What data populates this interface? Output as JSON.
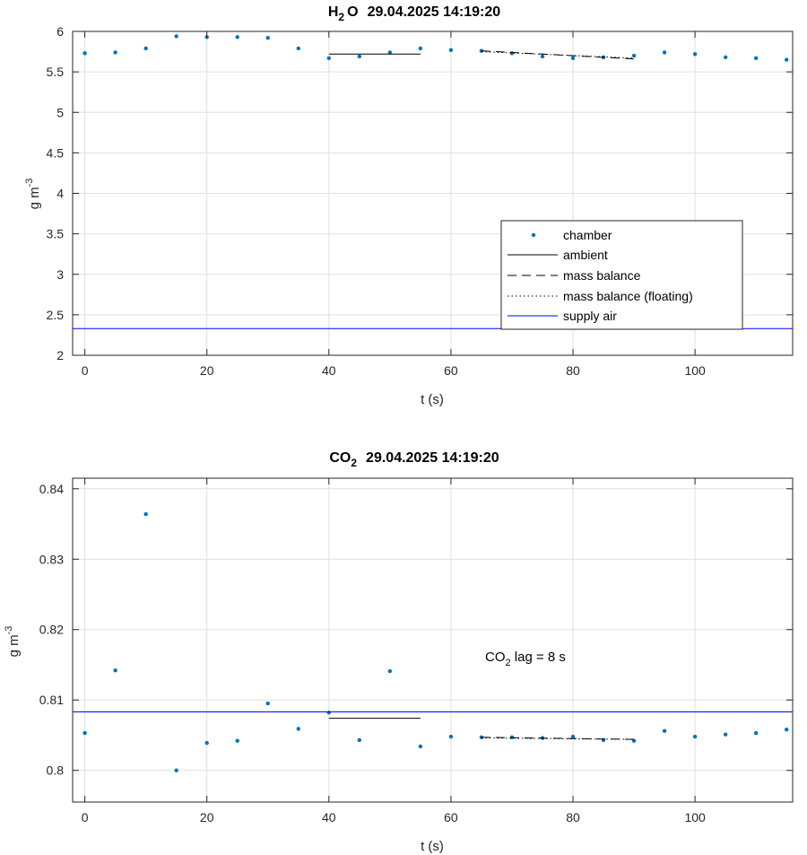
{
  "colors": {
    "chamber": "#0072BD",
    "supply_air": "#0000FF",
    "line": "#000000",
    "grid": "#dfdfdf"
  },
  "chart_data": [
    {
      "type": "scatter",
      "title": {
        "species": "H",
        "species_sub": "2",
        "species_tail": "O",
        "timestamp": "29.04.2025 14:19:20"
      },
      "xlabel": "t (s)",
      "ylabel": {
        "base": "g m",
        "sup": "-3"
      },
      "xlim": [
        -2,
        116
      ],
      "ylim": [
        2,
        6
      ],
      "xticks": [
        0,
        20,
        40,
        60,
        80,
        100
      ],
      "xtick_labels": [
        "0",
        "20",
        "40",
        "60",
        "80",
        "100"
      ],
      "yticks": [
        2,
        2.5,
        3,
        3.5,
        4,
        4.5,
        5,
        5.5,
        6
      ],
      "ytick_labels": [
        "2",
        "2.5",
        "3",
        "3.5",
        "4",
        "4.5",
        "5",
        "5.5",
        "6"
      ],
      "grid": true,
      "legend": {
        "position": "lower-right",
        "entries": [
          {
            "label": "chamber",
            "style": "dot"
          },
          {
            "label": "ambient",
            "style": "solid"
          },
          {
            "label": "mass balance",
            "style": "dashed"
          },
          {
            "label": "mass balance (floating)",
            "style": "dotted"
          },
          {
            "label": "supply air",
            "style": "solid-blue"
          }
        ]
      },
      "series": [
        {
          "name": "chamber",
          "style": "dot",
          "x": [
            0,
            5,
            10,
            15,
            20,
            25,
            30,
            35,
            40,
            45,
            50,
            55,
            60,
            65,
            70,
            75,
            80,
            85,
            90,
            95,
            100,
            105,
            110,
            115
          ],
          "y": [
            5.73,
            5.74,
            5.79,
            5.94,
            5.93,
            5.93,
            5.92,
            5.79,
            5.67,
            5.69,
            5.74,
            5.79,
            5.77,
            5.76,
            5.73,
            5.69,
            5.67,
            5.68,
            5.7,
            5.74,
            5.72,
            5.68,
            5.67,
            5.65
          ]
        },
        {
          "name": "ambient",
          "style": "solid",
          "x": [
            40,
            55
          ],
          "y": [
            5.72,
            5.72
          ]
        },
        {
          "name": "mass balance",
          "style": "dashed",
          "x": [
            65,
            90
          ],
          "y": [
            5.76,
            5.66
          ]
        },
        {
          "name": "mass balance (floating)",
          "style": "dotted",
          "x": [
            65,
            90
          ],
          "y": [
            5.75,
            5.67
          ]
        },
        {
          "name": "supply air",
          "style": "solid-blue",
          "x": [
            -2,
            116
          ],
          "y": [
            2.33,
            2.33
          ]
        }
      ]
    },
    {
      "type": "scatter",
      "title": {
        "species": "CO",
        "species_sub": "2",
        "species_tail": "",
        "timestamp": "29.04.2025 14:19:20"
      },
      "xlabel": "t (s)",
      "ylabel": {
        "base": "g m",
        "sup": "-3"
      },
      "xlim": [
        -2,
        116
      ],
      "ylim": [
        0.7955,
        0.8415
      ],
      "xticks": [
        0,
        20,
        40,
        60,
        80,
        100
      ],
      "xtick_labels": [
        "0",
        "20",
        "40",
        "60",
        "80",
        "100"
      ],
      "yticks": [
        0.8,
        0.81,
        0.82,
        0.83,
        0.84
      ],
      "ytick_labels": [
        "0.8",
        "0.81",
        "0.82",
        "0.83",
        "0.84"
      ],
      "grid": true,
      "annotation": {
        "prefix": "CO",
        "sub": "2",
        "suffix": " lag = 8 s",
        "x": 65,
        "y": 0.8157
      },
      "series": [
        {
          "name": "chamber",
          "style": "dot",
          "x": [
            0,
            5,
            10,
            15,
            20,
            25,
            30,
            35,
            40,
            45,
            50,
            55,
            60,
            65,
            70,
            75,
            80,
            85,
            90,
            95,
            100,
            105,
            110,
            115
          ],
          "y": [
            0.8053,
            0.8142,
            0.8364,
            0.8,
            0.8039,
            0.8042,
            0.8095,
            0.8059,
            0.8082,
            0.8043,
            0.8141,
            0.8034,
            0.8048,
            0.8047,
            0.8047,
            0.8046,
            0.8048,
            0.8043,
            0.8042,
            0.8056,
            0.8048,
            0.8051,
            0.8053,
            0.8058
          ]
        },
        {
          "name": "ambient",
          "style": "solid",
          "x": [
            40,
            55
          ],
          "y": [
            0.8074,
            0.8074
          ]
        },
        {
          "name": "mass balance",
          "style": "dashed",
          "x": [
            65,
            90
          ],
          "y": [
            0.8047,
            0.8044
          ]
        },
        {
          "name": "mass balance (floating)",
          "style": "dotted",
          "x": [
            65,
            90
          ],
          "y": [
            0.8046,
            0.8044
          ]
        },
        {
          "name": "supply air",
          "style": "solid-blue",
          "x": [
            -2,
            116
          ],
          "y": [
            0.8083,
            0.8083
          ]
        }
      ]
    }
  ]
}
